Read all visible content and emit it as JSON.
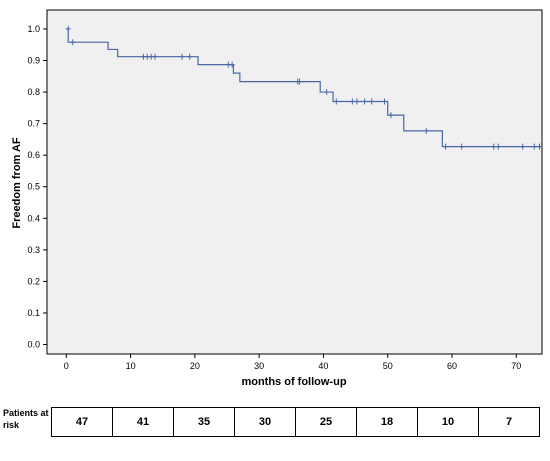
{
  "chart_data": {
    "type": "line",
    "step": true,
    "xlabel": "months of follow-up",
    "ylabel": "Freedom from AF",
    "xlim": [
      -3,
      74
    ],
    "ylim": [
      -0.03,
      1.06
    ],
    "xticks": [
      0,
      10,
      20,
      30,
      40,
      50,
      60,
      70
    ],
    "yticks": [
      0.0,
      0.1,
      0.2,
      0.3,
      0.4,
      0.5,
      0.6,
      0.7,
      0.8,
      0.9,
      1.0
    ],
    "ytick_labels": [
      "0.0",
      "0.1",
      "0.2",
      "0.3",
      "0.4",
      "0.5",
      "0.6",
      "0.7",
      "0.8",
      "0.9",
      "1.0"
    ],
    "grid": false,
    "background_color": "#f0f0f0",
    "line_color": "#4a66a8",
    "steps": [
      {
        "x": 0,
        "y": 1.0
      },
      {
        "x": 0.3,
        "y": 0.958
      },
      {
        "x": 6.5,
        "y": 0.935
      },
      {
        "x": 8,
        "y": 0.912
      },
      {
        "x": 20.5,
        "y": 0.887
      },
      {
        "x": 26,
        "y": 0.86
      },
      {
        "x": 27,
        "y": 0.833
      },
      {
        "x": 39.5,
        "y": 0.8
      },
      {
        "x": 41.5,
        "y": 0.77
      },
      {
        "x": 50,
        "y": 0.727
      },
      {
        "x": 52.5,
        "y": 0.677
      },
      {
        "x": 58.5,
        "y": 0.627
      },
      {
        "x": 74,
        "y": 0.627
      }
    ],
    "censored": [
      {
        "x": 0.3,
        "y": 1.0
      },
      {
        "x": 1.0,
        "y": 0.958
      },
      {
        "x": 12.0,
        "y": 0.912
      },
      {
        "x": 12.6,
        "y": 0.912
      },
      {
        "x": 13.2,
        "y": 0.912
      },
      {
        "x": 13.8,
        "y": 0.912
      },
      {
        "x": 18.0,
        "y": 0.912
      },
      {
        "x": 19.2,
        "y": 0.912
      },
      {
        "x": 25.2,
        "y": 0.887
      },
      {
        "x": 25.8,
        "y": 0.887
      },
      {
        "x": 36.0,
        "y": 0.833
      },
      {
        "x": 36.3,
        "y": 0.833
      },
      {
        "x": 40.5,
        "y": 0.8
      },
      {
        "x": 42.0,
        "y": 0.77
      },
      {
        "x": 44.5,
        "y": 0.77
      },
      {
        "x": 45.2,
        "y": 0.77
      },
      {
        "x": 46.4,
        "y": 0.77
      },
      {
        "x": 47.5,
        "y": 0.77
      },
      {
        "x": 49.5,
        "y": 0.77
      },
      {
        "x": 50.5,
        "y": 0.727
      },
      {
        "x": 56.0,
        "y": 0.677
      },
      {
        "x": 59.0,
        "y": 0.627
      },
      {
        "x": 61.5,
        "y": 0.627
      },
      {
        "x": 66.5,
        "y": 0.627
      },
      {
        "x": 67.2,
        "y": 0.627
      },
      {
        "x": 71.0,
        "y": 0.627
      },
      {
        "x": 72.8,
        "y": 0.627
      },
      {
        "x": 73.6,
        "y": 0.627
      }
    ]
  },
  "risk_table": {
    "label": "Patients at risk",
    "values": [
      "47",
      "41",
      "35",
      "30",
      "25",
      "18",
      "10",
      "7"
    ]
  }
}
